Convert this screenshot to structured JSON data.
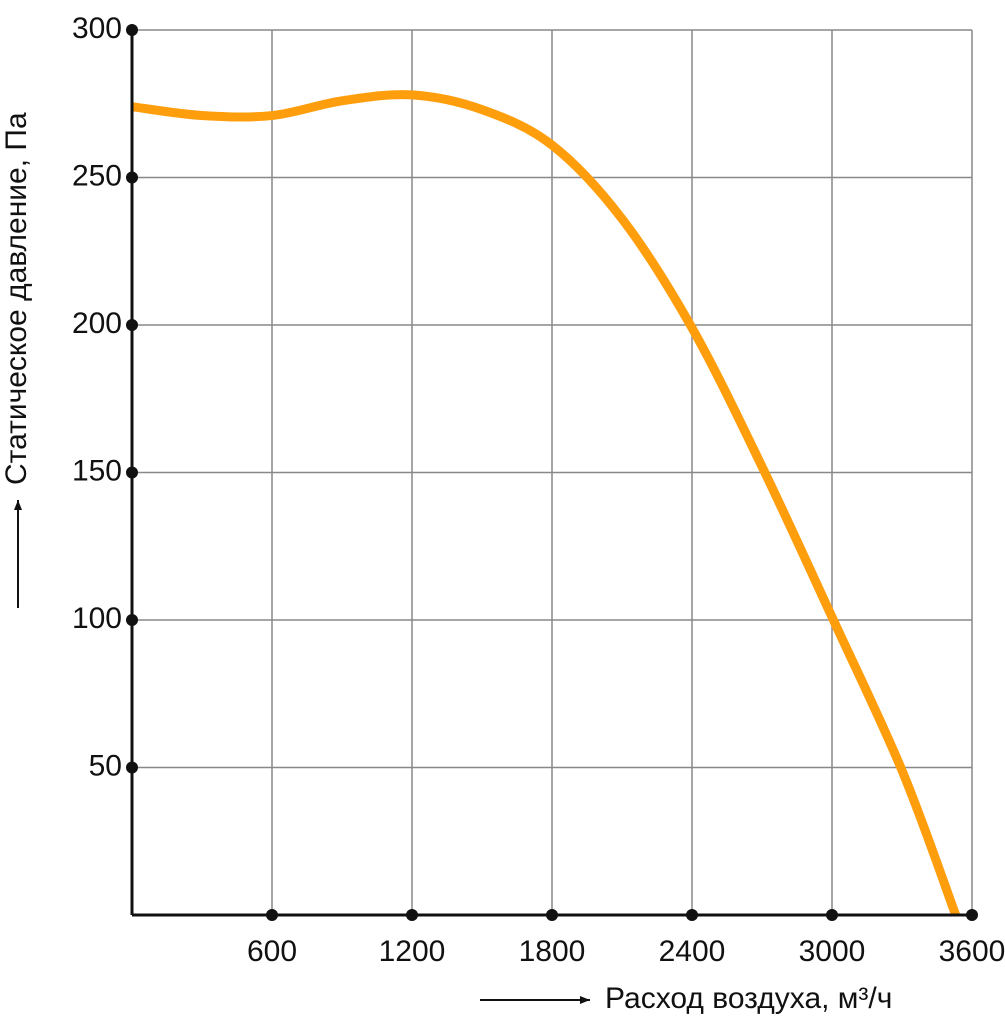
{
  "chart_data": {
    "type": "line",
    "x_label": "Расход воздуха, м³/ч",
    "y_label": "Статическое давление, Па",
    "x": [
      0,
      300,
      600,
      900,
      1200,
      1500,
      1800,
      2100,
      2400,
      2700,
      3000,
      3300,
      3530
    ],
    "series": [
      {
        "name": "Статическое давление",
        "color": "#ff9e0d",
        "values": [
          274,
          271,
          271,
          276,
          278,
          273,
          261,
          236,
          199,
          152,
          101,
          49,
          0
        ]
      }
    ],
    "xlim": [
      0,
      3600
    ],
    "xticks": [
      600,
      1200,
      1800,
      2400,
      3000,
      3600
    ],
    "ylim": [
      0,
      300
    ],
    "yticks": [
      50,
      100,
      150,
      200,
      250,
      300
    ],
    "grid": true
  }
}
